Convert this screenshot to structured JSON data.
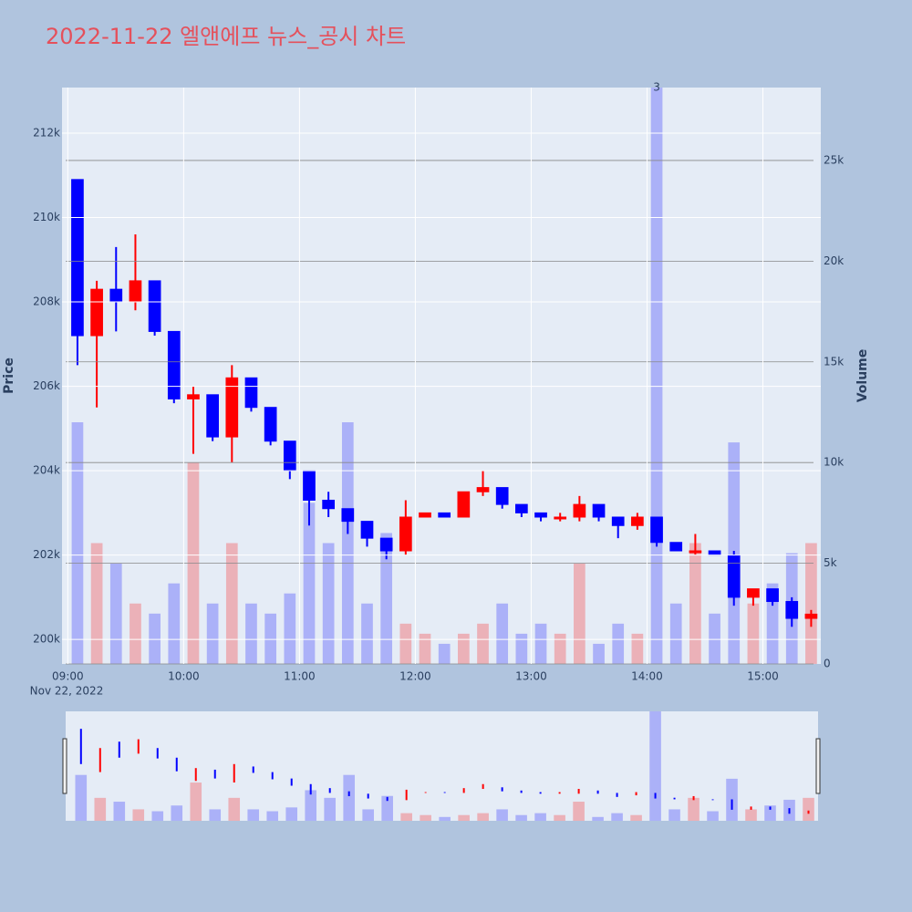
{
  "chart_data": {
    "type": "candlestick",
    "title": "2022-11-22 엘앤에프 뉴스_공시 차트",
    "y_title": "Price",
    "y2_title": "Volume",
    "x_date_label": "Nov 22, 2022",
    "x": [
      "09:00",
      "09:10",
      "09:20",
      "09:30",
      "09:40",
      "09:50",
      "10:00",
      "10:10",
      "10:20",
      "10:30",
      "10:40",
      "10:50",
      "11:00",
      "11:10",
      "11:20",
      "11:30",
      "11:40",
      "11:50",
      "12:00",
      "12:10",
      "12:20",
      "12:30",
      "12:40",
      "12:50",
      "13:00",
      "13:10",
      "13:20",
      "13:30",
      "13:40",
      "13:50",
      "14:00",
      "14:10",
      "14:20",
      "14:30",
      "14:40",
      "14:50",
      "15:00",
      "15:10",
      "15:20"
    ],
    "open": [
      210900,
      207200,
      208300,
      208000,
      208500,
      207300,
      205700,
      205800,
      204800,
      206200,
      205500,
      204700,
      204000,
      203300,
      203100,
      202800,
      202400,
      202100,
      202900,
      203000,
      202900,
      203500,
      203600,
      203200,
      203000,
      202900,
      202900,
      203200,
      202900,
      202700,
      202900,
      202300,
      202100,
      202100,
      202000,
      201000,
      201200,
      200900,
      200500
    ],
    "high": [
      210900,
      208500,
      209300,
      209600,
      208500,
      207300,
      206000,
      205800,
      206500,
      206200,
      205500,
      204700,
      204000,
      203500,
      203100,
      202800,
      202400,
      203300,
      203000,
      203000,
      203500,
      204000,
      203600,
      203200,
      203000,
      203000,
      203400,
      203200,
      202900,
      203000,
      202900,
      202300,
      202500,
      202100,
      202100,
      201200,
      201200,
      201000,
      200700
    ],
    "low": [
      206500,
      205500,
      207300,
      207800,
      207200,
      205600,
      204400,
      204700,
      204200,
      205400,
      204600,
      203800,
      202700,
      202900,
      202500,
      202200,
      201900,
      202000,
      202900,
      202900,
      202900,
      203400,
      203100,
      202900,
      202800,
      202800,
      202800,
      202800,
      202400,
      202600,
      202200,
      202100,
      202000,
      202000,
      200800,
      200800,
      200800,
      200300,
      200300
    ],
    "close": [
      207200,
      208300,
      208000,
      208500,
      207300,
      205700,
      205800,
      204800,
      206200,
      205500,
      204700,
      204000,
      203300,
      203100,
      202800,
      202400,
      202100,
      202900,
      203000,
      202900,
      203500,
      203600,
      203200,
      203000,
      202900,
      202900,
      203200,
      202900,
      202700,
      202900,
      202300,
      202100,
      202100,
      202000,
      201000,
      201200,
      200900,
      200500,
      200600
    ],
    "volume": [
      12000,
      6000,
      5000,
      3000,
      2500,
      4000,
      10000,
      3000,
      6000,
      3000,
      2500,
      3500,
      8000,
      6000,
      12000,
      3000,
      6500,
      2000,
      1500,
      1000,
      1500,
      2000,
      3000,
      1500,
      2000,
      1500,
      5000,
      1000,
      2000,
      1500,
      30000,
      3000,
      6000,
      2500,
      11000,
      3000,
      4000,
      5500,
      6000
    ],
    "increasing_color": "#ff0000",
    "decreasing_color": "#0000ff",
    "xlim": [
      "08:57",
      "15:30"
    ],
    "xticks": [
      "09:00",
      "10:00",
      "11:00",
      "12:00",
      "13:00",
      "14:00",
      "15:00"
    ],
    "ylim": [
      199420,
      213080
    ],
    "yticks": [
      {
        "value": 200000,
        "label": "200k"
      },
      {
        "value": 202000,
        "label": "202k"
      },
      {
        "value": 204000,
        "label": "204k"
      },
      {
        "value": 206000,
        "label": "206k"
      },
      {
        "value": 208000,
        "label": "208k"
      },
      {
        "value": 210000,
        "label": "210k"
      },
      {
        "value": 212000,
        "label": "212k"
      }
    ],
    "y2lim": [
      0,
      28620
    ],
    "y2ticks": [
      0,
      {
        "value": 5000,
        "label": "5k"
      },
      {
        "value": 10000,
        "label": "10k"
      },
      {
        "value": 15000,
        "label": "15k"
      },
      {
        "value": 20000,
        "label": "20k"
      },
      {
        "value": 25000,
        "label": "25k"
      }
    ],
    "annotations": [
      {
        "x": "14:00",
        "text": "3"
      }
    ],
    "grid": true,
    "rangeslider": true
  }
}
